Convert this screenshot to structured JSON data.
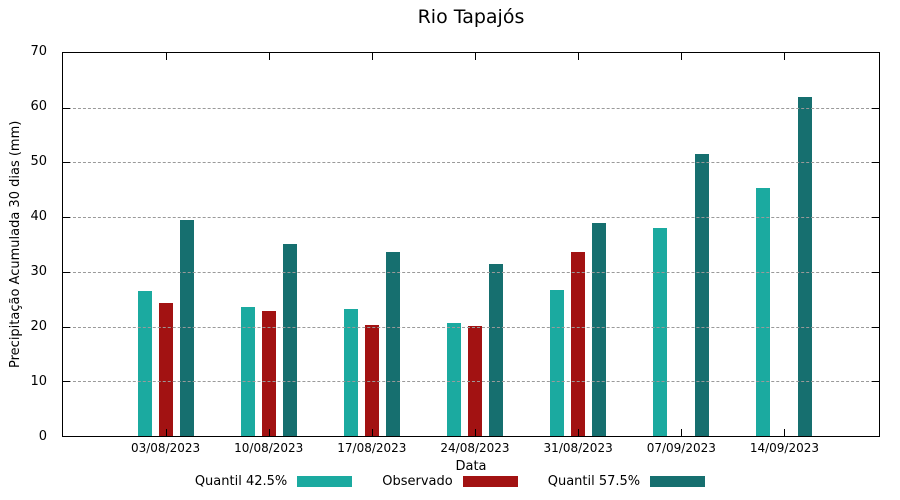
{
  "chart_data": {
    "type": "bar",
    "title": "Rio Tapajós",
    "xlabel": "Data",
    "ylabel": "Precipitação Acumulada 30 dias (mm)",
    "ylim": [
      0,
      70
    ],
    "yticks": [
      0,
      10,
      20,
      30,
      40,
      50,
      60,
      70
    ],
    "grid": true,
    "legend_position": "bottom",
    "categories": [
      "03/08/2023",
      "10/08/2023",
      "17/08/2023",
      "24/08/2023",
      "31/08/2023",
      "07/09/2023",
      "14/09/2023"
    ],
    "series": [
      {
        "name": "Quantil 42.5%",
        "color": "#1BAAA0",
        "values": [
          26.5,
          23.6,
          23.2,
          20.7,
          26.6,
          38.1,
          45.3
        ]
      },
      {
        "name": "Observado",
        "color": "#A21212",
        "values": [
          24.4,
          22.9,
          20.3,
          20.1,
          33.6,
          null,
          null
        ]
      },
      {
        "name": "Quantil 57.5%",
        "color": "#166F6F",
        "values": [
          39.4,
          35.1,
          33.6,
          31.4,
          38.9,
          51.6,
          62.0
        ]
      }
    ]
  }
}
